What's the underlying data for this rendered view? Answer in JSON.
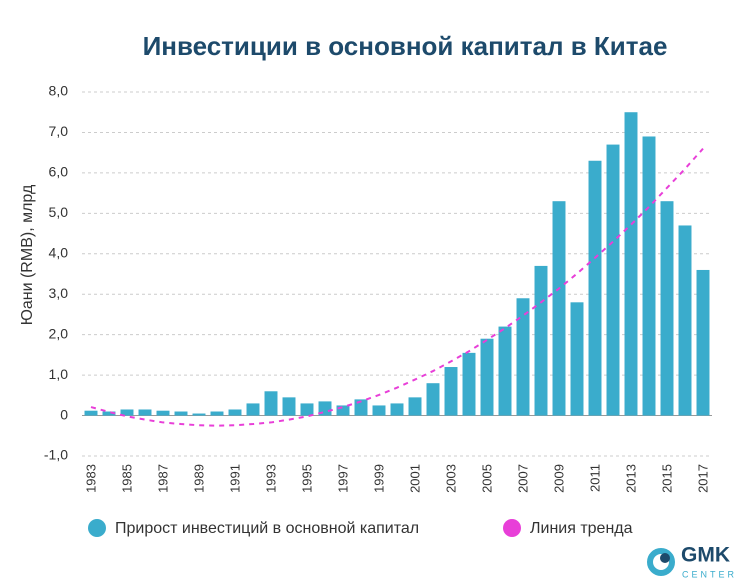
{
  "chart_data": {
    "type": "bar",
    "title": "Инвестиции в основной капитал в Китае",
    "y_label": "Юани (RMB), млрд",
    "categories": [
      "1983",
      null,
      "1985",
      null,
      "1987",
      null,
      "1989",
      null,
      "1991",
      null,
      "1993",
      null,
      "1995",
      null,
      "1997",
      null,
      "1999",
      null,
      "2001",
      null,
      "2003",
      null,
      "2005",
      null,
      "2007",
      null,
      "2009",
      null,
      "2011",
      null,
      "2013",
      null,
      "2015",
      null,
      "2017"
    ],
    "series": [
      {
        "name": "Прирост инвестиций в основной капитал",
        "color": "#3aaccc",
        "type": "bar",
        "values": [
          0.12,
          0.1,
          0.15,
          0.15,
          0.12,
          0.1,
          0.05,
          0.1,
          0.15,
          0.3,
          0.6,
          0.45,
          0.3,
          0.35,
          0.25,
          0.4,
          0.25,
          0.3,
          0.45,
          0.8,
          1.2,
          1.55,
          1.9,
          2.2,
          2.9,
          3.7,
          5.3,
          2.8,
          6.3,
          6.7,
          7.5,
          6.9,
          5.3,
          4.7,
          3.6
        ]
      },
      {
        "name": "Линия тренда",
        "color": "#e83fd8",
        "type": "line",
        "values": [
          0.21,
          0.09,
          -0.02,
          -0.1,
          -0.17,
          -0.21,
          -0.24,
          -0.25,
          -0.24,
          -0.21,
          -0.17,
          -0.1,
          -0.02,
          0.09,
          0.21,
          0.35,
          0.51,
          0.69,
          0.89,
          1.1,
          1.34,
          1.59,
          1.87,
          2.16,
          2.47,
          2.8,
          3.14,
          3.51,
          3.9,
          4.3,
          4.72,
          5.16,
          5.63,
          6.1,
          6.6
        ]
      }
    ],
    "ylim": [
      -1,
      8
    ],
    "yticks": [
      {
        "value": -1,
        "label": "-1,0"
      },
      0,
      {
        "value": 1,
        "label": "1,0"
      },
      {
        "value": 2,
        "label": "2,0"
      },
      {
        "value": 3,
        "label": "3,0"
      },
      {
        "value": 4,
        "label": "4,0"
      },
      {
        "value": 5,
        "label": "5,0"
      },
      {
        "value": 6,
        "label": "6,0"
      },
      {
        "value": 7,
        "label": "7,0"
      },
      {
        "value": 8,
        "label": "8,0"
      }
    ],
    "grid": true,
    "legend": "bottom"
  },
  "logo": {
    "name": "GMK",
    "sub": "CENTER"
  }
}
